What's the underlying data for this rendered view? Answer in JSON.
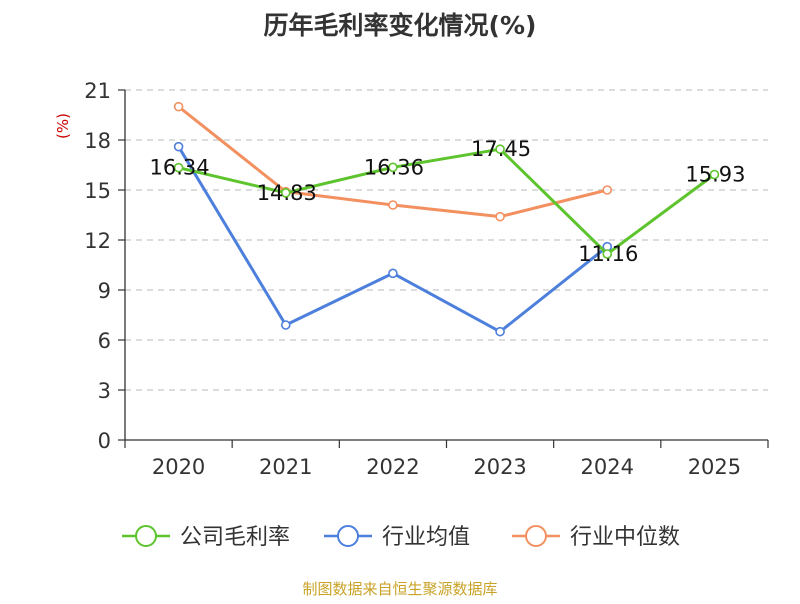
{
  "chart_data": {
    "type": "line",
    "title": "历年毛利率变化情况(%)",
    "ylabel": "(%)",
    "xlabel": "",
    "categories": [
      "2020",
      "2021",
      "2022",
      "2023",
      "2024",
      "2025"
    ],
    "ylim": [
      0,
      21
    ],
    "yticks": [
      0,
      3,
      6,
      9,
      12,
      15,
      18,
      21
    ],
    "grid": true,
    "legend_position": "bottom",
    "series": [
      {
        "name": "公司毛利率",
        "color": "#5dc42d",
        "values": [
          16.34,
          14.83,
          16.36,
          17.45,
          11.16,
          15.93
        ],
        "labels": [
          "16.34",
          "14.83",
          "16.36",
          "17.45",
          "11.16",
          "15.93"
        ]
      },
      {
        "name": "行业均值",
        "color": "#4d7fdc",
        "values": [
          17.6,
          6.9,
          10.0,
          6.5,
          11.6,
          null
        ]
      },
      {
        "name": "行业中位数",
        "color": "#f39060",
        "values": [
          20.0,
          14.9,
          14.1,
          13.4,
          15.0,
          null
        ]
      }
    ],
    "source": "制图数据来自恒生聚源数据库"
  },
  "colors": {
    "title": "#333333",
    "axis": "#333333",
    "ylabel": "#cc0000",
    "grid": "#c8c8c8",
    "source": "#c9a227"
  }
}
